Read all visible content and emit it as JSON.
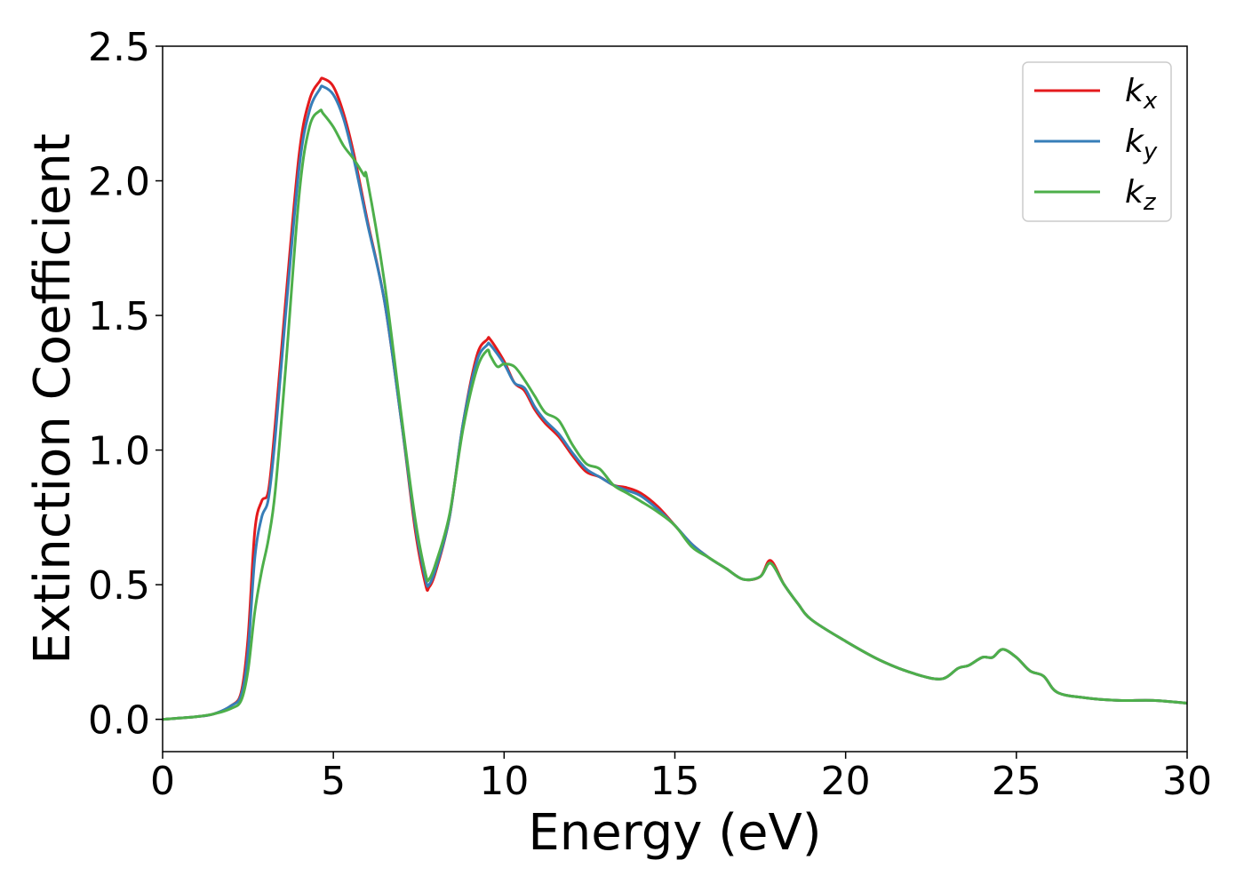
{
  "chart_data": {
    "type": "line",
    "title": "",
    "xlabel": "Energy (eV)",
    "ylabel": "Extinction Coefficient",
    "xlim": [
      0,
      30
    ],
    "ylim": [
      -0.12,
      2.5
    ],
    "xticks": [
      0,
      5,
      10,
      15,
      20,
      25,
      30
    ],
    "xtick_labels": [
      "0",
      "5",
      "10",
      "15",
      "20",
      "25",
      "30"
    ],
    "yticks": [
      0.0,
      0.5,
      1.0,
      1.5,
      2.0,
      2.5
    ],
    "ytick_labels": [
      "0.0",
      "0.5",
      "1.0",
      "1.5",
      "2.0",
      "2.5"
    ],
    "grid": false,
    "legend_position": "top-right",
    "series": [
      {
        "name": "k_x",
        "legend_base": "k",
        "legend_sub": "x",
        "color": "#e41a1c",
        "x": [
          0,
          1,
          1.5,
          2,
          2.3,
          2.5,
          2.7,
          2.9,
          3.1,
          3.3,
          3.6,
          4.0,
          4.3,
          4.6,
          4.7,
          5.0,
          5.3,
          5.6,
          6.0,
          6.5,
          7.0,
          7.4,
          7.7,
          7.8,
          8.0,
          8.4,
          8.8,
          9.2,
          9.5,
          9.6,
          10.0,
          10.3,
          10.6,
          10.9,
          11.2,
          11.6,
          12.0,
          12.4,
          12.8,
          13.2,
          13.6,
          14.0,
          14.5,
          15.0,
          15.5,
          16.0,
          16.5,
          17.0,
          17.5,
          17.8,
          18.2,
          18.6,
          19.0,
          20.0,
          21.0,
          22.0,
          22.8,
          23.3,
          23.6,
          24.0,
          24.3,
          24.6,
          25.0,
          25.4,
          25.8,
          26.2,
          27.0,
          28.0,
          29.0,
          30.0
        ],
        "y": [
          0.0,
          0.01,
          0.02,
          0.05,
          0.1,
          0.3,
          0.7,
          0.81,
          0.85,
          1.1,
          1.55,
          2.1,
          2.3,
          2.37,
          2.38,
          2.35,
          2.25,
          2.1,
          1.85,
          1.55,
          1.1,
          0.7,
          0.5,
          0.49,
          0.55,
          0.75,
          1.1,
          1.35,
          1.41,
          1.41,
          1.33,
          1.25,
          1.22,
          1.15,
          1.1,
          1.05,
          0.98,
          0.92,
          0.9,
          0.87,
          0.86,
          0.84,
          0.79,
          0.72,
          0.65,
          0.6,
          0.56,
          0.52,
          0.53,
          0.59,
          0.5,
          0.43,
          0.37,
          0.29,
          0.22,
          0.17,
          0.15,
          0.19,
          0.2,
          0.23,
          0.23,
          0.26,
          0.23,
          0.18,
          0.16,
          0.1,
          0.08,
          0.07,
          0.07,
          0.06
        ]
      },
      {
        "name": "k_y",
        "legend_base": "k",
        "legend_sub": "y",
        "color": "#377eb8",
        "x": [
          0,
          1,
          1.5,
          2,
          2.3,
          2.5,
          2.7,
          2.9,
          3.1,
          3.3,
          3.6,
          4.0,
          4.3,
          4.6,
          4.7,
          5.0,
          5.3,
          5.6,
          6.0,
          6.5,
          7.0,
          7.4,
          7.7,
          7.8,
          8.0,
          8.4,
          8.8,
          9.2,
          9.5,
          9.6,
          10.0,
          10.3,
          10.6,
          10.9,
          11.2,
          11.6,
          12.0,
          12.4,
          12.8,
          13.2,
          13.6,
          14.0,
          14.5,
          15.0,
          15.5,
          16.0,
          16.5,
          17.0,
          17.5,
          17.8,
          18.2,
          18.6,
          19.0,
          20.0,
          21.0,
          22.0,
          22.8,
          23.3,
          23.6,
          24.0,
          24.3,
          24.6,
          25.0,
          25.4,
          25.8,
          26.2,
          27.0,
          28.0,
          29.0,
          30.0
        ],
        "y": [
          0.0,
          0.01,
          0.02,
          0.05,
          0.09,
          0.25,
          0.6,
          0.75,
          0.82,
          1.05,
          1.5,
          2.05,
          2.26,
          2.34,
          2.35,
          2.32,
          2.23,
          2.08,
          1.84,
          1.55,
          1.1,
          0.72,
          0.52,
          0.5,
          0.56,
          0.75,
          1.1,
          1.33,
          1.39,
          1.39,
          1.32,
          1.25,
          1.23,
          1.16,
          1.11,
          1.06,
          0.99,
          0.93,
          0.9,
          0.87,
          0.85,
          0.83,
          0.78,
          0.72,
          0.65,
          0.6,
          0.56,
          0.52,
          0.53,
          0.58,
          0.5,
          0.43,
          0.37,
          0.29,
          0.22,
          0.17,
          0.15,
          0.19,
          0.2,
          0.23,
          0.23,
          0.26,
          0.23,
          0.18,
          0.16,
          0.1,
          0.08,
          0.07,
          0.07,
          0.06
        ]
      },
      {
        "name": "k_z",
        "legend_base": "k",
        "legend_sub": "z",
        "color": "#4daf4a",
        "x": [
          0,
          1,
          1.5,
          2,
          2.3,
          2.5,
          2.7,
          2.9,
          3.1,
          3.3,
          3.6,
          4.0,
          4.3,
          4.6,
          4.7,
          5.0,
          5.3,
          5.6,
          5.9,
          6.0,
          6.5,
          7.0,
          7.4,
          7.7,
          7.8,
          8.0,
          8.4,
          8.8,
          9.2,
          9.5,
          9.6,
          9.8,
          10.0,
          10.3,
          10.6,
          10.9,
          11.2,
          11.6,
          12.0,
          12.4,
          12.8,
          13.2,
          13.6,
          14.0,
          14.5,
          15.0,
          15.5,
          16.0,
          16.5,
          17.0,
          17.5,
          17.8,
          18.2,
          18.6,
          19.0,
          20.0,
          21.0,
          22.0,
          22.8,
          23.3,
          23.6,
          24.0,
          24.3,
          24.6,
          25.0,
          25.4,
          25.8,
          26.2,
          27.0,
          28.0,
          29.0,
          30.0
        ],
        "y": [
          0.0,
          0.01,
          0.02,
          0.04,
          0.07,
          0.18,
          0.4,
          0.55,
          0.67,
          0.85,
          1.3,
          1.95,
          2.2,
          2.26,
          2.25,
          2.2,
          2.13,
          2.08,
          2.02,
          2.0,
          1.62,
          1.12,
          0.74,
          0.54,
          0.52,
          0.58,
          0.76,
          1.08,
          1.3,
          1.37,
          1.35,
          1.31,
          1.32,
          1.31,
          1.26,
          1.2,
          1.14,
          1.11,
          1.02,
          0.95,
          0.93,
          0.87,
          0.84,
          0.81,
          0.77,
          0.72,
          0.64,
          0.6,
          0.56,
          0.52,
          0.53,
          0.58,
          0.5,
          0.43,
          0.37,
          0.29,
          0.22,
          0.17,
          0.15,
          0.19,
          0.2,
          0.23,
          0.23,
          0.26,
          0.23,
          0.18,
          0.16,
          0.1,
          0.08,
          0.07,
          0.07,
          0.06
        ]
      }
    ]
  }
}
